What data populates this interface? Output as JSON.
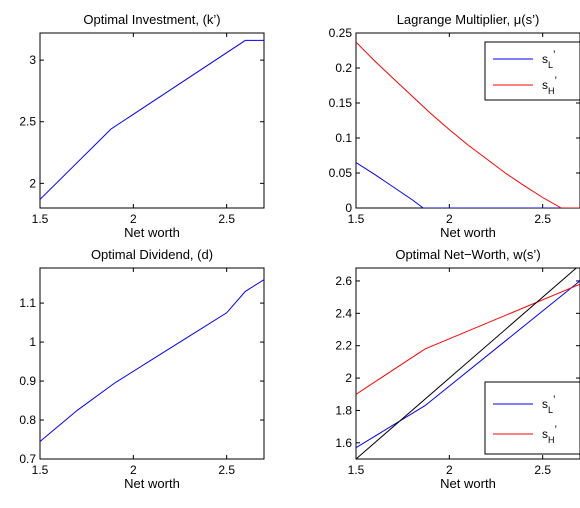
{
  "chart_data": [
    {
      "type": "line",
      "title": "Optimal Investment, (k’)",
      "xlabel": "Net worth",
      "ylabel": "",
      "xlim": [
        1.5,
        2.7
      ],
      "ylim": [
        1.8,
        3.22
      ],
      "xticks": [
        "1.5",
        "2",
        "2.5"
      ],
      "xtick_values": [
        1.5,
        2,
        2.5
      ],
      "yticks": [
        "2",
        "2.5",
        "3"
      ],
      "ytick_values": [
        2,
        2.5,
        3
      ],
      "grid": false,
      "legend": null,
      "series": [
        {
          "color": "#0000ff",
          "x": [
            1.5,
            1.88,
            2.6,
            2.7
          ],
          "y": [
            1.87,
            2.44,
            3.16,
            3.16
          ]
        }
      ]
    },
    {
      "type": "line",
      "title": "Lagrange Multiplier, μ(s’)",
      "xlabel": "Net worth",
      "ylabel": "",
      "xlim": [
        1.5,
        2.7
      ],
      "ylim": [
        0,
        0.25
      ],
      "xticks": [
        "1.5",
        "2",
        "2.5"
      ],
      "xtick_values": [
        1.5,
        2,
        2.5
      ],
      "yticks": [
        "0",
        "0.05",
        "0.1",
        "0.15",
        "0.2",
        "0.25"
      ],
      "ytick_values": [
        0,
        0.05,
        0.1,
        0.15,
        0.2,
        0.25
      ],
      "grid": false,
      "legend": "top-right",
      "series": [
        {
          "name_base": "s",
          "name_sub": "L",
          "name_sup": "’",
          "color": "#0000ff",
          "x": [
            1.5,
            1.6,
            1.7,
            1.8,
            1.86,
            2.0,
            2.2,
            2.4,
            2.6,
            2.7
          ],
          "y": [
            0.065,
            0.048,
            0.03,
            0.012,
            0.0,
            0.0,
            0.0,
            0.0,
            0.0,
            0.0
          ]
        },
        {
          "name_base": "s",
          "name_sub": "H",
          "name_sup": "’",
          "color": "#ff0000",
          "x": [
            1.5,
            1.6,
            1.7,
            1.8,
            1.9,
            2.0,
            2.1,
            2.2,
            2.3,
            2.4,
            2.5,
            2.6,
            2.7
          ],
          "y": [
            0.237,
            0.21,
            0.185,
            0.16,
            0.135,
            0.112,
            0.09,
            0.07,
            0.05,
            0.032,
            0.015,
            0.0,
            0.0
          ]
        }
      ]
    },
    {
      "type": "line",
      "title": "Optimal Dividend, (d)",
      "xlabel": "Net worth",
      "ylabel": "",
      "xlim": [
        1.5,
        2.7
      ],
      "ylim": [
        0.7,
        1.19
      ],
      "xticks": [
        "1.5",
        "2",
        "2.5"
      ],
      "xtick_values": [
        1.5,
        2,
        2.5
      ],
      "yticks": [
        "0.7",
        "0.8",
        "0.9",
        "1",
        "1.1"
      ],
      "ytick_values": [
        0.7,
        0.8,
        0.9,
        1.0,
        1.1
      ],
      "grid": false,
      "legend": null,
      "series": [
        {
          "color": "#0000ff",
          "x": [
            1.5,
            1.7,
            1.9,
            2.1,
            2.3,
            2.5,
            2.6,
            2.7
          ],
          "y": [
            0.745,
            0.825,
            0.895,
            0.955,
            1.015,
            1.075,
            1.13,
            1.16
          ]
        }
      ]
    },
    {
      "type": "line",
      "title": "Optimal Net−Worth, w(s’)",
      "xlabel": "Net worth",
      "ylabel": "",
      "xlim": [
        1.5,
        2.7
      ],
      "ylim": [
        1.5,
        2.68
      ],
      "xticks": [
        "1.5",
        "2",
        "2.5"
      ],
      "xtick_values": [
        1.5,
        2,
        2.5
      ],
      "yticks": [
        "1.6",
        "1.8",
        "2",
        "2.2",
        "2.4",
        "2.6"
      ],
      "ytick_values": [
        1.6,
        1.8,
        2.0,
        2.2,
        2.4,
        2.6
      ],
      "grid": false,
      "legend": "bottom-right",
      "series": [
        {
          "name_base": "s",
          "name_sub": "L",
          "name_sup": "’",
          "color": "#0000ff",
          "x": [
            1.5,
            1.87,
            2.7
          ],
          "y": [
            1.57,
            1.83,
            2.6
          ]
        },
        {
          "name_base": "s",
          "name_sub": "H",
          "name_sup": "’",
          "color": "#ff0000",
          "x": [
            1.5,
            1.87,
            2.7
          ],
          "y": [
            1.9,
            2.18,
            2.58
          ]
        },
        {
          "color": "#000000",
          "x": [
            1.5,
            2.7
          ],
          "y": [
            1.5,
            2.7
          ]
        }
      ]
    }
  ]
}
